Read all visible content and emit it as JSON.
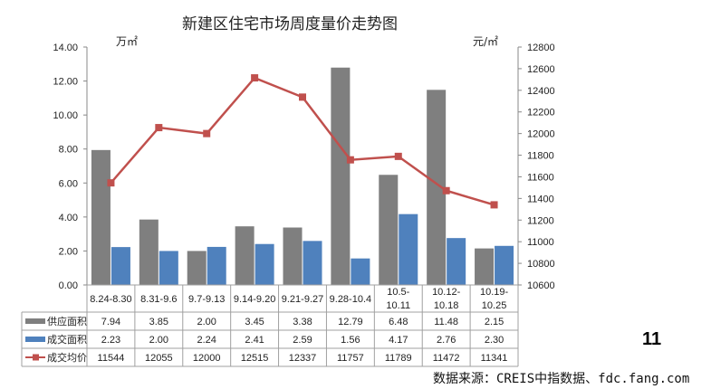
{
  "page_number": "11",
  "source_text": "数据来源：CREIS中指数据、fdc.fang.com",
  "colors": {
    "supply": "#7f7f7f",
    "deal": "#4f81bd",
    "price": "#c0504d",
    "grid": "#a0a0a0"
  },
  "chart_data": {
    "type": "bar",
    "title": "新建区住宅市场周度量价走势图",
    "left_unit": "万㎡",
    "right_unit": "元/㎡",
    "categories": [
      "8.24-8.30",
      "8.31-9.6",
      "9.7-9.13",
      "9.14-9.20",
      "9.21-9.27",
      "9.28-10.4",
      "10.5-\n10.11",
      "10.12-\n10.18",
      "10.19-\n10.25"
    ],
    "ylim": [
      0,
      14
    ],
    "yticks": [
      "0.00",
      "2.00",
      "4.00",
      "6.00",
      "8.00",
      "10.00",
      "12.00",
      "14.00"
    ],
    "y2lim": [
      10600,
      12800
    ],
    "y2ticks": [
      "10600",
      "10800",
      "11000",
      "11200",
      "11400",
      "11600",
      "11800",
      "12000",
      "12200",
      "12400",
      "12600",
      "12800"
    ],
    "series": [
      {
        "name": "供应面积",
        "kind": "bar",
        "values": [
          7.94,
          3.85,
          2.0,
          3.45,
          3.38,
          12.79,
          6.48,
          11.48,
          2.15
        ],
        "labels": [
          "7.94",
          "3.85",
          "2.00",
          "3.45",
          "3.38",
          "12.79",
          "6.48",
          "11.48",
          "2.15"
        ]
      },
      {
        "name": "成交面积",
        "kind": "bar",
        "values": [
          2.23,
          2.0,
          2.24,
          2.41,
          2.59,
          1.56,
          4.17,
          2.76,
          2.3
        ],
        "labels": [
          "2.23",
          "2.00",
          "2.24",
          "2.41",
          "2.59",
          "1.56",
          "4.17",
          "2.76",
          "2.30"
        ]
      },
      {
        "name": "成交均价",
        "kind": "line",
        "axis": "right",
        "values": [
          11544,
          12055,
          12000,
          12515,
          12337,
          11757,
          11789,
          11472,
          11341
        ],
        "labels": [
          "11544",
          "12055",
          "12000",
          "12515",
          "12337",
          "11757",
          "11789",
          "11472",
          "11341"
        ]
      }
    ]
  }
}
